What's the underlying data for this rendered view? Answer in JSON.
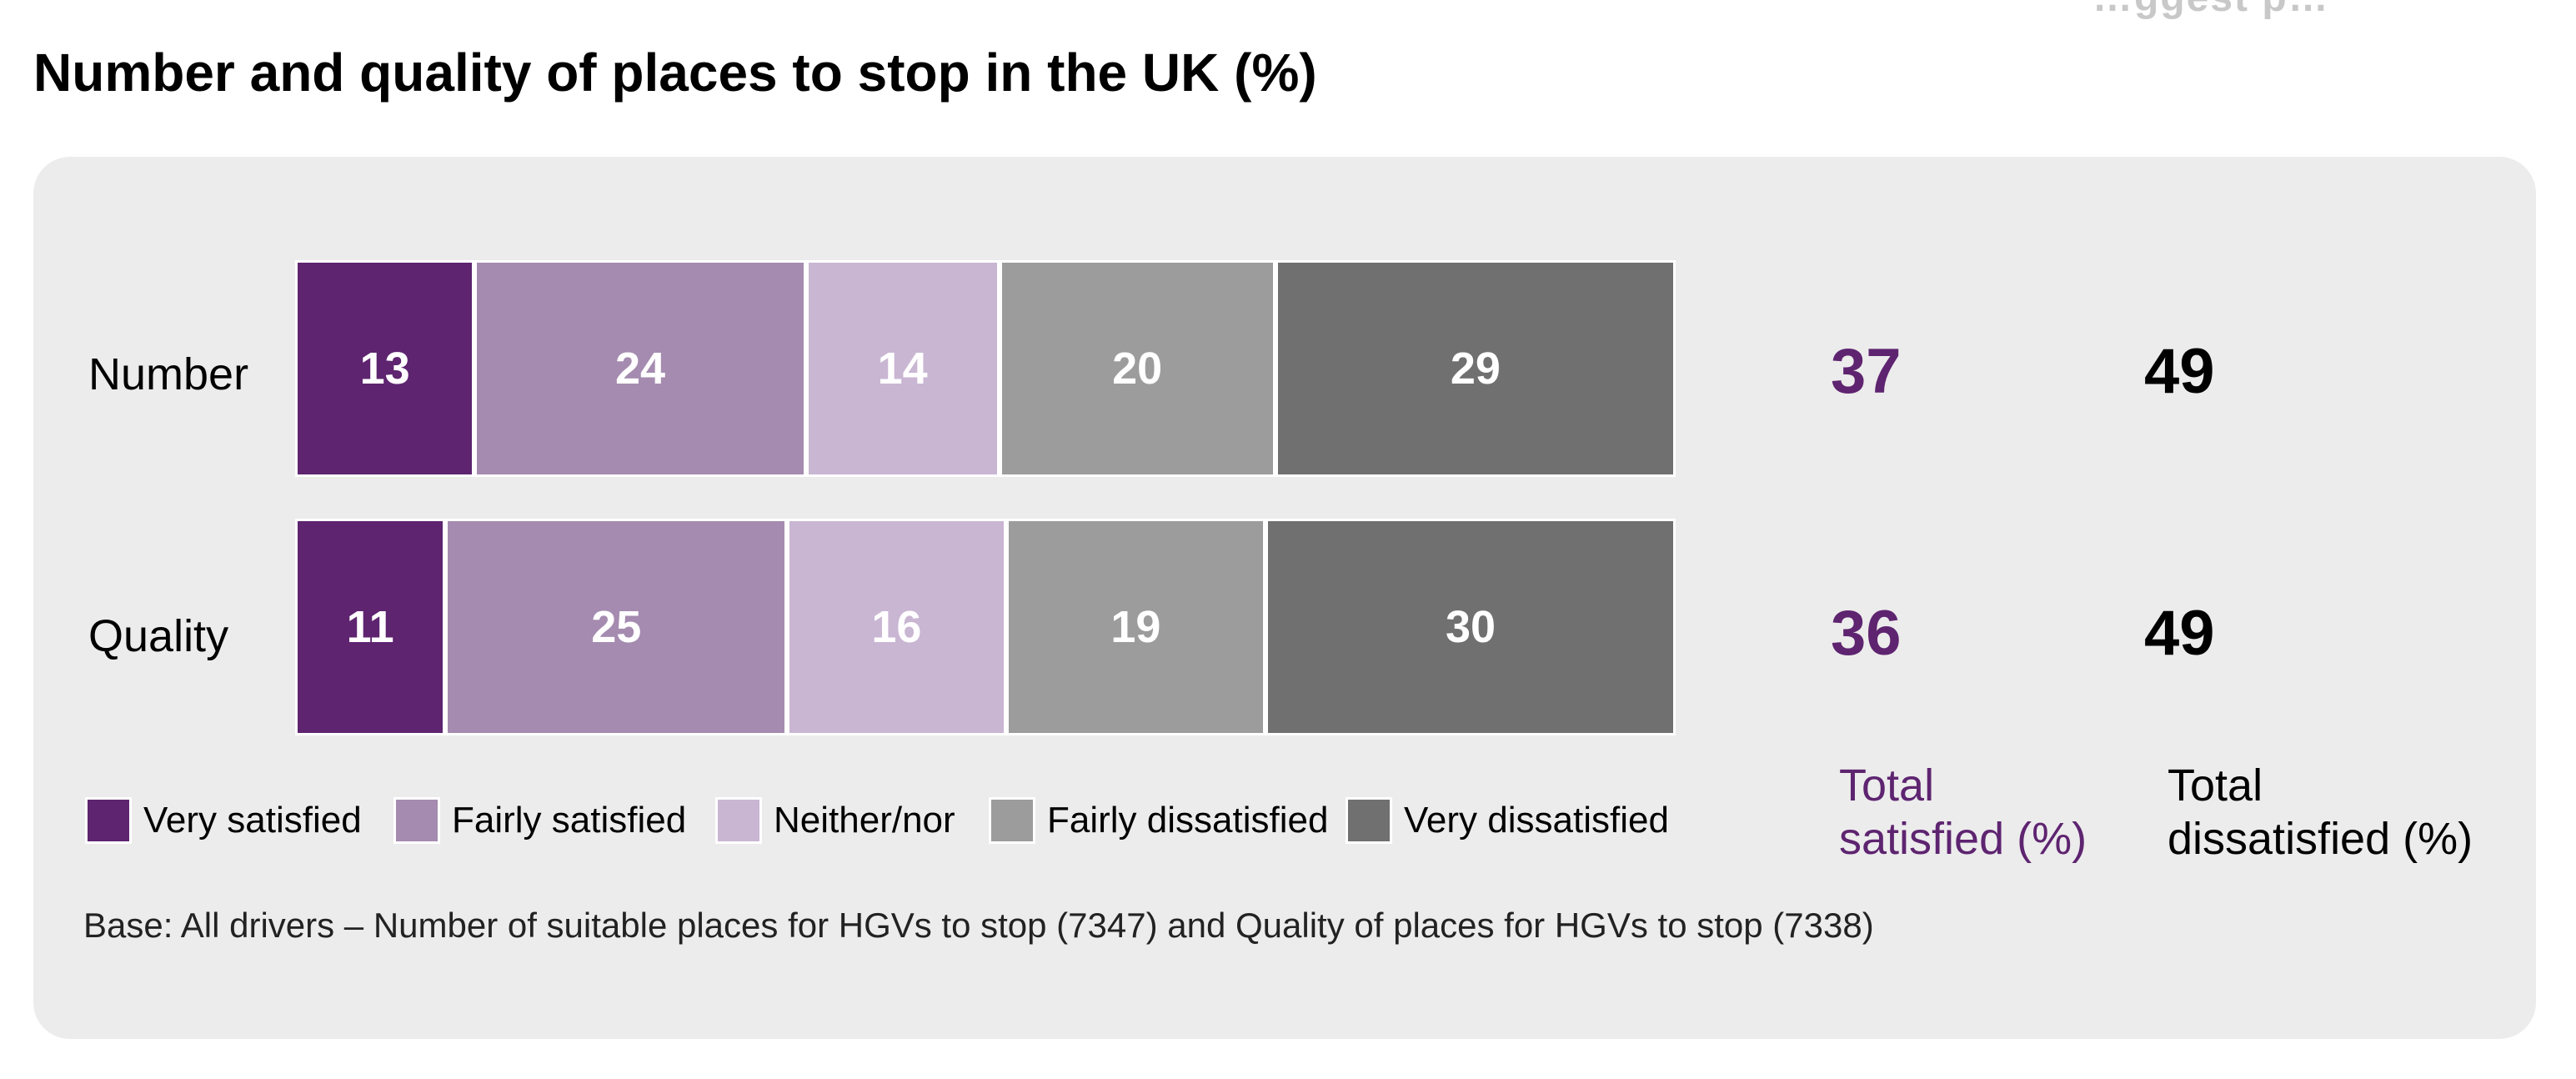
{
  "partial_header_text": "…ggest p…",
  "chart_data": {
    "type": "bar",
    "orientation": "horizontal",
    "stacked": true,
    "title": "Number and quality of places to stop in the UK (%)",
    "categories": [
      "Number",
      "Quality"
    ],
    "series": [
      {
        "name": "Very satisfied",
        "color": "#5e2470",
        "values": [
          13,
          11
        ]
      },
      {
        "name": "Fairly satisfied",
        "color": "#a58bb0",
        "values": [
          24,
          25
        ]
      },
      {
        "name": "Neither/nor",
        "color": "#c9b6d3",
        "values": [
          14,
          16
        ]
      },
      {
        "name": "Fairly dissatisfied",
        "color": "#9c9c9c",
        "values": [
          20,
          19
        ]
      },
      {
        "name": "Very dissatisfied",
        "color": "#707070",
        "values": [
          29,
          30
        ]
      }
    ],
    "totals": {
      "satisfied": {
        "label_line1": "Total",
        "label_line2": "satisfied (%)",
        "values": [
          37,
          36
        ],
        "color": "#5e2470"
      },
      "dissatisfied": {
        "label_line1": "Total",
        "label_line2": "dissatisfied (%)",
        "values": [
          49,
          49
        ],
        "color": "#000000"
      }
    },
    "legend_position": "bottom",
    "grid": false,
    "base_note": "Base: All drivers – Number of suitable places for HGVs to stop (7347) and Quality of places for HGVs to stop (7338)"
  }
}
